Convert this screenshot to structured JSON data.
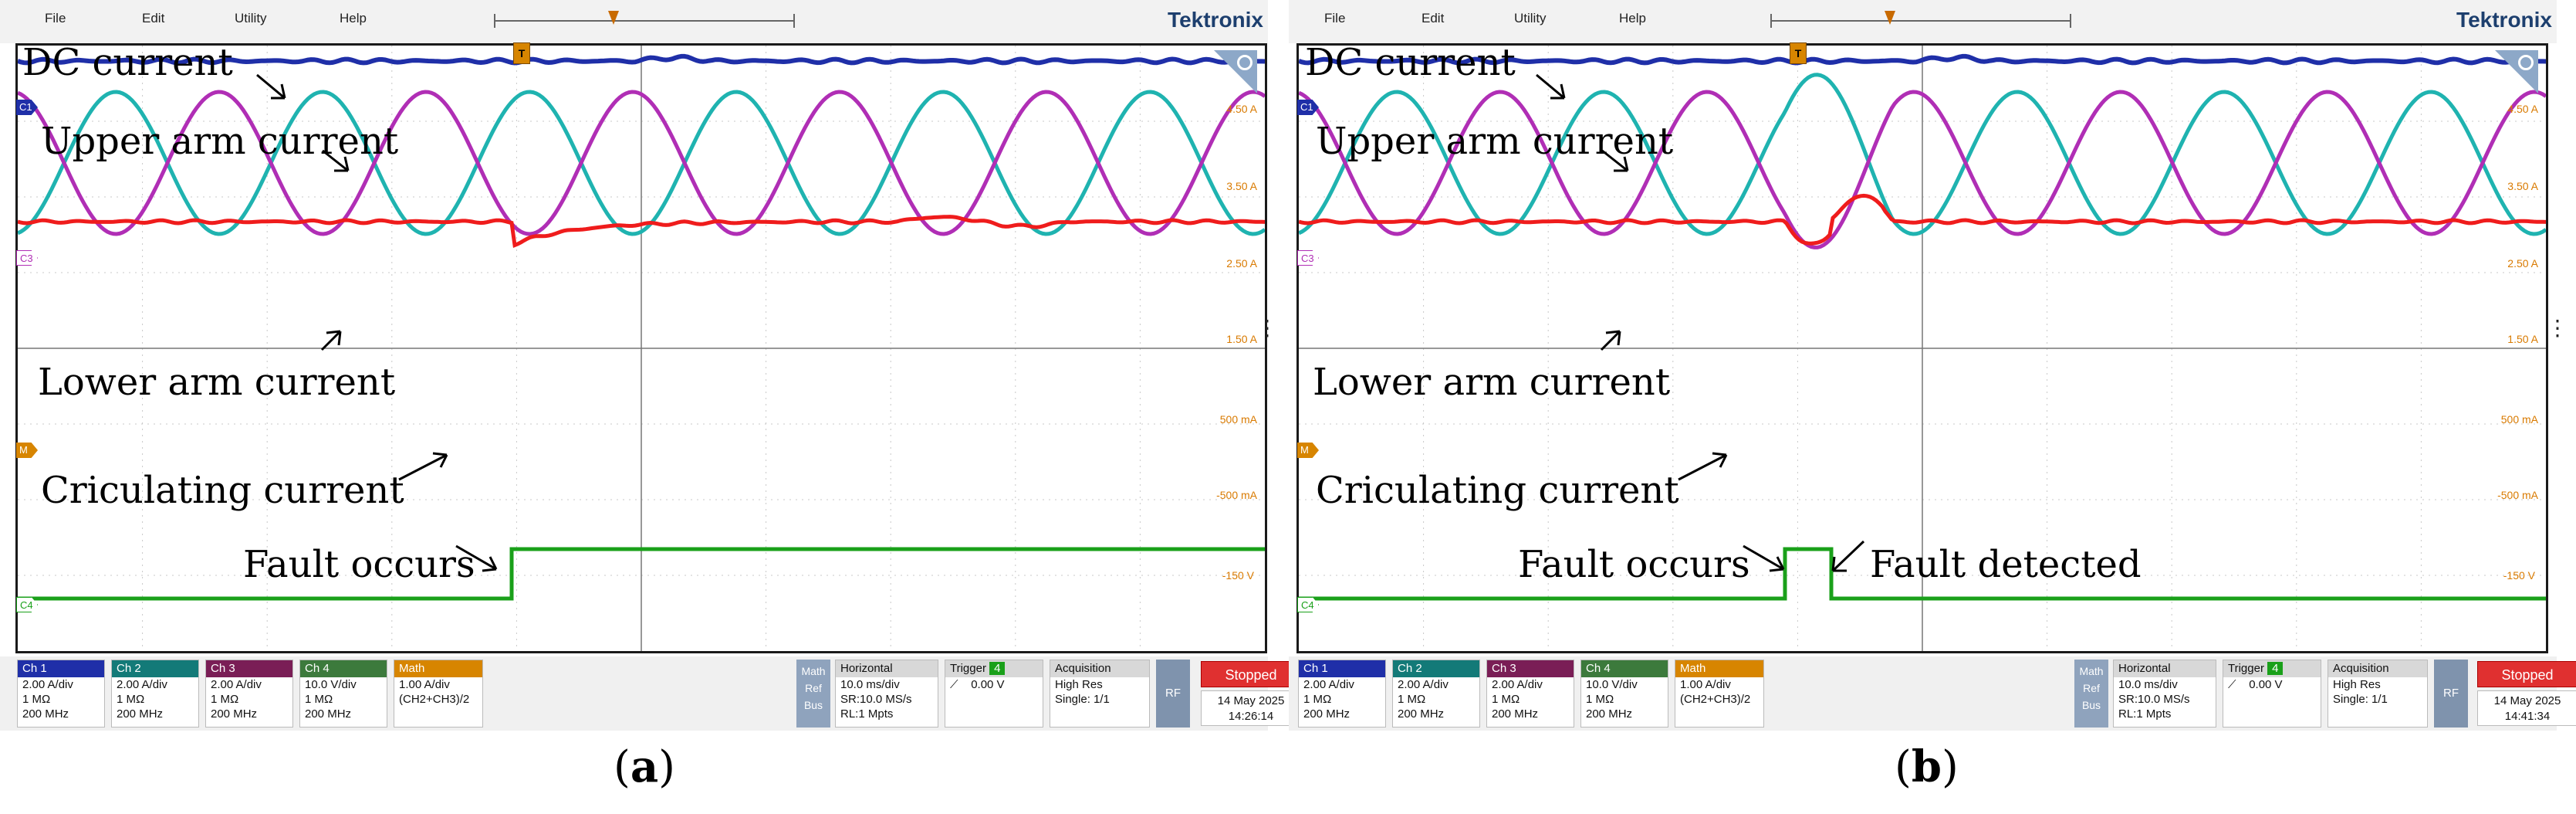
{
  "menu": [
    "File",
    "Edit",
    "Utility",
    "Help"
  ],
  "brand": "Tektronix",
  "trigger_marker": "T",
  "channel_markers": {
    "c1": "C1",
    "c3": "C3",
    "m": "M",
    "c4": "C4"
  },
  "colors": {
    "ch1": "#1f2fa8",
    "ch2": "#1fb3b0",
    "ch3": "#b02eb5",
    "ch4": "#1aa01a",
    "math": "#ef1c1c",
    "scale_text": "#d97a00"
  },
  "scale_labels": {
    "dc": "4.50 A",
    "upper": "3.50 A",
    "mid": "2.50 A",
    "lower": "1.50 A",
    "m_pos": "500 mA",
    "m_neg": "-500 mA",
    "c4": "-150 V"
  },
  "channels": [
    {
      "name": "Ch 1",
      "scale": "2.00 A/div",
      "impedance": "1 MΩ",
      "bandwidth": "200 MHz"
    },
    {
      "name": "Ch 2",
      "scale": "2.00 A/div",
      "impedance": "1 MΩ",
      "bandwidth": "200 MHz"
    },
    {
      "name": "Ch 3",
      "scale": "2.00 A/div",
      "impedance": "1 MΩ",
      "bandwidth": "200 MHz"
    },
    {
      "name": "Ch 4",
      "scale": "10.0 V/div",
      "impedance": "1 MΩ",
      "bandwidth": "200 MHz"
    }
  ],
  "math": {
    "name": "Math",
    "scale": "1.00 A/div",
    "expr": "(CH2+CH3)/2"
  },
  "mrb": [
    "Math",
    "Ref",
    "Bus"
  ],
  "horizontal": {
    "title": "Horizontal",
    "scale": "10.0 ms/div",
    "sr": "SR:10.0 MS/s",
    "rl": "RL:1 Mpts"
  },
  "trigger": {
    "title": "Trigger",
    "source": "4",
    "level": "0.00 V"
  },
  "acquisition": {
    "title": "Acquisition",
    "mode": "High Res",
    "count": "Single: 1/1"
  },
  "rf": "RF",
  "state": "Stopped",
  "annotations": {
    "dc": "DC current",
    "upper": "Upper arm current",
    "lower": "Lower arm current",
    "circ": "Criculating current",
    "fault_occurs": "Fault occurs",
    "fault_detected": "Fault detected"
  },
  "panels": [
    {
      "id": "a",
      "label": "a",
      "date": "14 May 2025",
      "time": "14:26:14"
    },
    {
      "id": "b",
      "label": "b",
      "date": "14 May 2025",
      "time": "14:41:34"
    }
  ]
}
